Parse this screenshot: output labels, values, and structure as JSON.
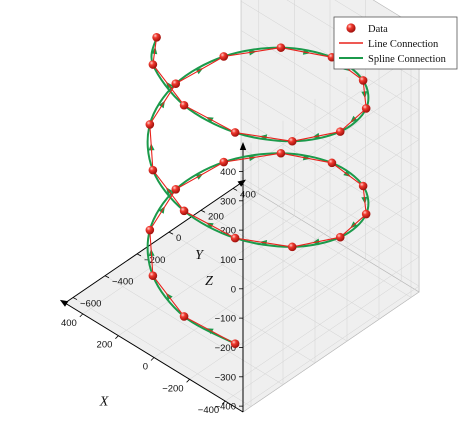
{
  "chart_data": {
    "type": "scatter",
    "subtype": "3d-helix",
    "title": "",
    "xlabel": "X",
    "ylabel": "Y",
    "zlabel": "Z",
    "xlim": [
      -500,
      500
    ],
    "ylim": [
      -650,
      450
    ],
    "zlim": [
      -420,
      480
    ],
    "xticks": [
      "−400",
      "−200",
      "0",
      "200",
      "400"
    ],
    "yticks": [
      "−600",
      "−400",
      "−200",
      "0",
      "200",
      "400"
    ],
    "zticks": [
      "−400",
      "−300",
      "−200",
      "−100",
      "0",
      "100",
      "200",
      "300",
      "400"
    ],
    "xtick_values": [
      -400,
      -200,
      0,
      200,
      400
    ],
    "ytick_values": [
      -600,
      -400,
      -200,
      0,
      200,
      400
    ],
    "ztick_values": [
      -400,
      -300,
      -200,
      -100,
      0,
      100,
      200,
      300,
      400
    ],
    "grid": true,
    "legend_position": "top-right",
    "series": [
      {
        "name": "Data",
        "marker": "sphere",
        "color": "#e8221c",
        "x": [
          -231,
          0,
          231,
          400,
          462,
          400,
          231,
          0,
          -231,
          -400,
          -462,
          -400,
          -231,
          0,
          231,
          400,
          462,
          400,
          231,
          0,
          -231,
          -400,
          -462,
          -400,
          -231,
          0,
          231,
          300
        ],
        "y": [
          -400,
          -462,
          -400,
          -231,
          0,
          231,
          400,
          462,
          400,
          231,
          0,
          -231,
          -400,
          -462,
          -400,
          -231,
          0,
          231,
          400,
          462,
          400,
          231,
          0,
          -231,
          -400,
          -462,
          -400,
          -300
        ],
        "z": [
          -380,
          -350,
          -320,
          -290,
          -260,
          -230,
          -200,
          -170,
          -140,
          -110,
          -80,
          -50,
          -20,
          10,
          40,
          70,
          100,
          130,
          160,
          190,
          220,
          250,
          280,
          310,
          340,
          370,
          400,
          430
        ]
      },
      {
        "name": "Line Connection",
        "color": "#e8221c"
      },
      {
        "name": "Spline Connection",
        "color": "#1b9a4b"
      }
    ]
  }
}
